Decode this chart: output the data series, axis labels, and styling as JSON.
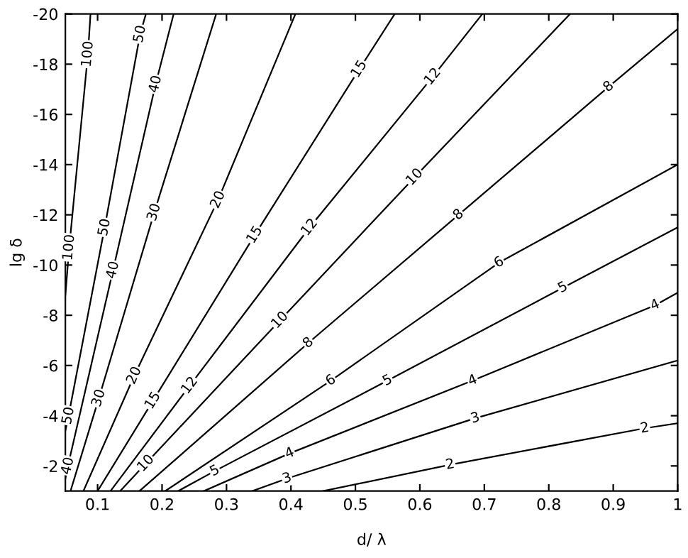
{
  "chart_data": {
    "type": "line",
    "xlabel": "d/ λ",
    "ylabel": "lg δ",
    "xlim": [
      0.05,
      1
    ],
    "ylim": [
      -1,
      -20
    ],
    "xticks": [
      0.1,
      0.2,
      0.3,
      0.4,
      0.5,
      0.6,
      0.7,
      0.8,
      0.9,
      1
    ],
    "yticks": [
      -2,
      -4,
      -6,
      -8,
      -10,
      -12,
      -14,
      -16,
      -18,
      -20
    ],
    "grid": false,
    "legend": false,
    "line_style": "solid",
    "series": [
      {
        "name": "100",
        "color": "#000000",
        "x": [
          0.089,
          0.085,
          0.056,
          0.05
        ],
        "values": [
          -20,
          -18.4,
          -10.7,
          -8.8
        ]
      },
      {
        "name": "50",
        "color": "#000000",
        "x": [
          0.175,
          0.166,
          0.111,
          0.055,
          0.05
        ],
        "values": [
          -20,
          -19.2,
          -11.5,
          -4,
          -3.4
        ]
      },
      {
        "name": "40",
        "color": "#000000",
        "x": [
          0.218,
          0.19,
          0.124,
          0.054,
          0.05
        ],
        "values": [
          -20,
          -17.2,
          -9.8,
          -2,
          -1.5
        ]
      },
      {
        "name": "30",
        "color": "#000000",
        "x": [
          0.284,
          0.188,
          0.102,
          0.058
        ],
        "values": [
          -20,
          -12.1,
          -4.7,
          -1
        ]
      },
      {
        "name": "20",
        "color": "#000000",
        "x": [
          0.407,
          0.287,
          0.157,
          0.078
        ],
        "values": [
          -20,
          -12.6,
          -5.6,
          -1
        ]
      },
      {
        "name": "15",
        "color": "#000000",
        "x": [
          0.561,
          0.506,
          0.344,
          0.186,
          0.1
        ],
        "values": [
          -20,
          -17.8,
          -11.2,
          -4.6,
          -1
        ]
      },
      {
        "name": "12",
        "color": "#000000",
        "x": [
          0.697,
          0.62,
          0.429,
          0.243,
          0.12
        ],
        "values": [
          -20,
          -17.5,
          -11.5,
          -5.2,
          -1
        ]
      },
      {
        "name": "10",
        "color": "#000000",
        "x": [
          0.833,
          0.592,
          0.383,
          0.175,
          0.135
        ],
        "values": [
          -20,
          -13.5,
          -7.8,
          -2.1,
          -1
        ]
      },
      {
        "name": "8",
        "color": "#000000",
        "x": [
          1,
          0.893,
          0.66,
          0.427,
          0.165
        ],
        "values": [
          -19.4,
          -17.1,
          -12.0,
          -6.9,
          -1
        ]
      },
      {
        "name": "6",
        "color": "#000000",
        "x": [
          1,
          0.723,
          0.462,
          0.205
        ],
        "values": [
          -14.0,
          -10.1,
          -5.4,
          -1
        ]
      },
      {
        "name": "5",
        "color": "#000000",
        "x": [
          1,
          0.822,
          0.55,
          0.282,
          0.225
        ],
        "values": [
          -11.5,
          -9.1,
          -5.4,
          -1.8,
          -1
        ]
      },
      {
        "name": "4",
        "color": "#000000",
        "x": [
          1,
          0.965,
          0.682,
          0.398,
          0.265
        ],
        "values": [
          -8.9,
          -8.4,
          -5.4,
          -2.5,
          -1
        ]
      },
      {
        "name": "3",
        "color": "#000000",
        "x": [
          1,
          0.686,
          0.394,
          0.34
        ],
        "values": [
          -6.2,
          -3.9,
          -1.5,
          -1
        ]
      },
      {
        "name": "2",
        "color": "#000000",
        "x": [
          1,
          0.949,
          0.647,
          0.45
        ],
        "values": [
          -3.7,
          -3.5,
          -2.05,
          -1.0
        ]
      }
    ]
  }
}
